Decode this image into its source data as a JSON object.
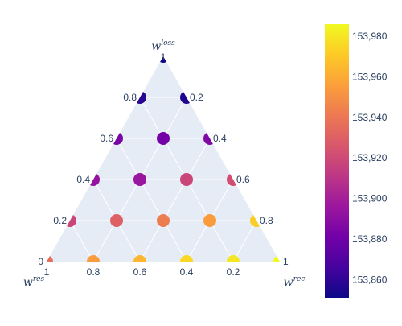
{
  "chart_data": {
    "type": "ternary-scatter",
    "axes": {
      "top": {
        "title": "w",
        "superscript": "loss"
      },
      "left": {
        "title": "w",
        "superscript": "res"
      },
      "right": {
        "title": "w",
        "superscript": "rec"
      },
      "ticks": [
        "0",
        "0.2",
        "0.4",
        "0.6",
        "0.8",
        "1"
      ]
    },
    "points": [
      {
        "loss": 1.0,
        "res": 0.0,
        "rec": 0.0,
        "value": 153851
      },
      {
        "loss": 0.8,
        "res": 0.2,
        "rec": 0.0,
        "value": 153858
      },
      {
        "loss": 0.8,
        "res": 0.0,
        "rec": 0.2,
        "value": 153856
      },
      {
        "loss": 0.6,
        "res": 0.4,
        "rec": 0.0,
        "value": 153884
      },
      {
        "loss": 0.6,
        "res": 0.2,
        "rec": 0.2,
        "value": 153882
      },
      {
        "loss": 0.6,
        "res": 0.0,
        "rec": 0.4,
        "value": 153886
      },
      {
        "loss": 0.4,
        "res": 0.6,
        "rec": 0.0,
        "value": 153893
      },
      {
        "loss": 0.4,
        "res": 0.4,
        "rec": 0.2,
        "value": 153895
      },
      {
        "loss": 0.4,
        "res": 0.2,
        "rec": 0.4,
        "value": 153918
      },
      {
        "loss": 0.4,
        "res": 0.0,
        "rec": 0.6,
        "value": 153922
      },
      {
        "loss": 0.2,
        "res": 0.8,
        "rec": 0.0,
        "value": 153918
      },
      {
        "loss": 0.2,
        "res": 0.6,
        "rec": 0.2,
        "value": 153930
      },
      {
        "loss": 0.2,
        "res": 0.4,
        "rec": 0.4,
        "value": 153942
      },
      {
        "loss": 0.2,
        "res": 0.2,
        "rec": 0.6,
        "value": 153955
      },
      {
        "loss": 0.2,
        "res": 0.0,
        "rec": 0.8,
        "value": 153972
      },
      {
        "loss": 0.0,
        "res": 1.0,
        "rec": 0.0,
        "value": 153936
      },
      {
        "loss": 0.0,
        "res": 0.8,
        "rec": 0.2,
        "value": 153955
      },
      {
        "loss": 0.0,
        "res": 0.6,
        "rec": 0.4,
        "value": 153964
      },
      {
        "loss": 0.0,
        "res": 0.4,
        "rec": 0.6,
        "value": 153975
      },
      {
        "loss": 0.0,
        "res": 0.2,
        "rec": 0.8,
        "value": 153980
      },
      {
        "loss": 0.0,
        "res": 0.0,
        "rec": 1.0,
        "value": 153986
      }
    ],
    "colorbar": {
      "colorscale": "Plasma",
      "cmin": 153851,
      "cmax": 153986,
      "ticks": [
        153860,
        153880,
        153900,
        153920,
        153940,
        153960,
        153980
      ],
      "tick_labels": [
        "153,860",
        "153,880",
        "153,900",
        "153,920",
        "153,940",
        "153,960",
        "153,980"
      ]
    },
    "colors": {
      "plot_bg": "#e5ecf6",
      "grid": "#ffffff",
      "tick_text": "#2a3f5f",
      "plasma": [
        "#0d0887",
        "#46039f",
        "#7201a8",
        "#9c179e",
        "#bd3786",
        "#d8576b",
        "#ed7953",
        "#fb9f3a",
        "#fdca26",
        "#f0f921"
      ]
    }
  }
}
